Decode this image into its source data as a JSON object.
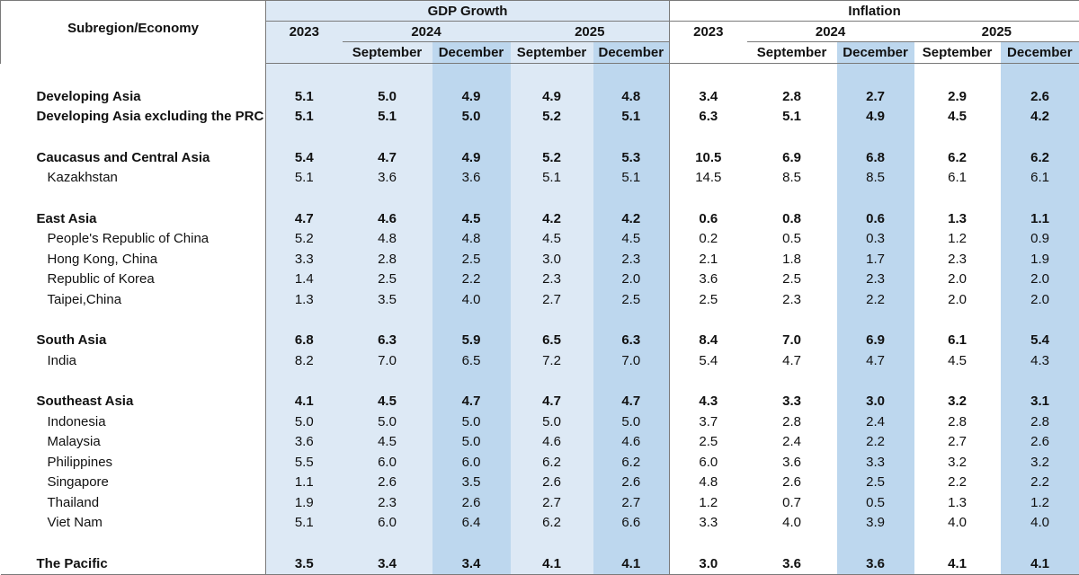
{
  "header": {
    "corner_label": "Subregion/Economy",
    "group_gdp": "GDP Growth",
    "group_inflation": "Inflation",
    "year_2023": "2023",
    "year_2024": "2024",
    "year_2025": "2025",
    "month_sep": "September",
    "month_dec": "December"
  },
  "rows": [
    {
      "name": "Developing Asia",
      "bold": true,
      "values": [
        "5.1",
        "5.0",
        "4.9",
        "4.9",
        "4.8",
        "3.4",
        "2.8",
        "2.7",
        "2.9",
        "2.6"
      ]
    },
    {
      "name": "Developing Asia excluding the PRC",
      "bold": true,
      "values": [
        "5.1",
        "5.1",
        "5.0",
        "5.2",
        "5.1",
        "6.3",
        "5.1",
        "4.9",
        "4.5",
        "4.2"
      ]
    },
    {
      "name": "Caucasus and Central Asia",
      "bold": true,
      "values": [
        "5.4",
        "4.7",
        "4.9",
        "5.2",
        "5.3",
        "10.5",
        "6.9",
        "6.8",
        "6.2",
        "6.2"
      ]
    },
    {
      "name": "Kazakhstan",
      "bold": false,
      "values": [
        "5.1",
        "3.6",
        "3.6",
        "5.1",
        "5.1",
        "14.5",
        "8.5",
        "8.5",
        "6.1",
        "6.1"
      ]
    },
    {
      "name": "East Asia",
      "bold": true,
      "values": [
        "4.7",
        "4.6",
        "4.5",
        "4.2",
        "4.2",
        "0.6",
        "0.8",
        "0.6",
        "1.3",
        "1.1"
      ]
    },
    {
      "name": "People's Republic of China",
      "bold": false,
      "values": [
        "5.2",
        "4.8",
        "4.8",
        "4.5",
        "4.5",
        "0.2",
        "0.5",
        "0.3",
        "1.2",
        "0.9"
      ]
    },
    {
      "name": "Hong Kong, China",
      "bold": false,
      "values": [
        "3.3",
        "2.8",
        "2.5",
        "3.0",
        "2.3",
        "2.1",
        "1.8",
        "1.7",
        "2.3",
        "1.9"
      ]
    },
    {
      "name": "Republic of Korea",
      "bold": false,
      "values": [
        "1.4",
        "2.5",
        "2.2",
        "2.3",
        "2.0",
        "3.6",
        "2.5",
        "2.3",
        "2.0",
        "2.0"
      ]
    },
    {
      "name": "Taipei,China",
      "bold": false,
      "values": [
        "1.3",
        "3.5",
        "4.0",
        "2.7",
        "2.5",
        "2.5",
        "2.3",
        "2.2",
        "2.0",
        "2.0"
      ]
    },
    {
      "name": "South Asia",
      "bold": true,
      "values": [
        "6.8",
        "6.3",
        "5.9",
        "6.5",
        "6.3",
        "8.4",
        "7.0",
        "6.9",
        "6.1",
        "5.4"
      ]
    },
    {
      "name": "India",
      "bold": false,
      "values": [
        "8.2",
        "7.0",
        "6.5",
        "7.2",
        "7.0",
        "5.4",
        "4.7",
        "4.7",
        "4.5",
        "4.3"
      ]
    },
    {
      "name": "Southeast Asia",
      "bold": true,
      "values": [
        "4.1",
        "4.5",
        "4.7",
        "4.7",
        "4.7",
        "4.3",
        "3.3",
        "3.0",
        "3.2",
        "3.1"
      ]
    },
    {
      "name": "Indonesia",
      "bold": false,
      "values": [
        "5.0",
        "5.0",
        "5.0",
        "5.0",
        "5.0",
        "3.7",
        "2.8",
        "2.4",
        "2.8",
        "2.8"
      ]
    },
    {
      "name": "Malaysia",
      "bold": false,
      "values": [
        "3.6",
        "4.5",
        "5.0",
        "4.6",
        "4.6",
        "2.5",
        "2.4",
        "2.2",
        "2.7",
        "2.6"
      ]
    },
    {
      "name": "Philippines",
      "bold": false,
      "values": [
        "5.5",
        "6.0",
        "6.0",
        "6.2",
        "6.2",
        "6.0",
        "3.6",
        "3.3",
        "3.2",
        "3.2"
      ]
    },
    {
      "name": "Singapore",
      "bold": false,
      "values": [
        "1.1",
        "2.6",
        "3.5",
        "2.6",
        "2.6",
        "4.8",
        "2.6",
        "2.5",
        "2.2",
        "2.2"
      ]
    },
    {
      "name": "Thailand",
      "bold": false,
      "values": [
        "1.9",
        "2.3",
        "2.6",
        "2.7",
        "2.7",
        "1.2",
        "0.7",
        "0.5",
        "1.3",
        "1.2"
      ]
    },
    {
      "name": "Viet Nam",
      "bold": false,
      "values": [
        "5.1",
        "6.0",
        "6.4",
        "6.2",
        "6.6",
        "3.3",
        "4.0",
        "3.9",
        "4.0",
        "4.0"
      ]
    },
    {
      "name": "The Pacific",
      "bold": true,
      "values": [
        "3.5",
        "3.4",
        "3.4",
        "4.1",
        "4.1",
        "3.0",
        "3.6",
        "3.6",
        "4.1",
        "4.1"
      ]
    }
  ],
  "colors": {
    "light_column": "#dde9f5",
    "dark_column": "#bdd7ee",
    "rule": "#7a7a7a"
  }
}
